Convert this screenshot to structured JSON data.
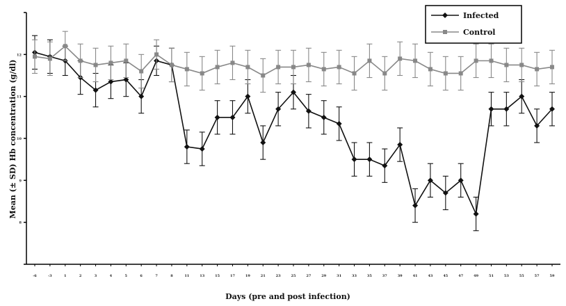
{
  "chart_data": {
    "type": "line",
    "title": "",
    "xlabel": "Days (pre and post infection)",
    "ylabel": "Mean (± SD) Hb concentration (g/dl)",
    "ylim": [
      7,
      13
    ],
    "yticks": [
      7,
      8,
      9,
      10,
      11,
      12,
      13
    ],
    "ytick_labels": [
      "",
      "8",
      "9",
      "10",
      "11",
      "12",
      ""
    ],
    "grid": false,
    "legend_position": "top-right",
    "categories": [
      "-6",
      "-3",
      "1",
      "2",
      "3",
      "4",
      "5",
      "6",
      "7",
      "8",
      "11",
      "13",
      "15",
      "17",
      "19",
      "21",
      "23",
      "25",
      "27",
      "29",
      "31",
      "33",
      "35",
      "37",
      "39",
      "41",
      "43",
      "45",
      "47",
      "49",
      "51",
      "53",
      "55",
      "57",
      "59"
    ],
    "series": [
      {
        "name": "Infected",
        "color": "#111111",
        "marker": "diamond",
        "values": [
          12.05,
          11.95,
          11.85,
          11.45,
          11.15,
          11.35,
          11.4,
          11.0,
          11.85,
          11.75,
          9.8,
          9.75,
          10.5,
          10.5,
          11.0,
          9.9,
          10.7,
          11.1,
          10.65,
          10.5,
          10.35,
          9.5,
          9.5,
          9.35,
          9.85,
          8.4,
          9.0,
          8.7,
          9.0,
          8.2,
          10.7,
          10.7,
          11.0,
          10.3,
          10.7
        ],
        "error": [
          0.4,
          0.4,
          0.35,
          0.4,
          0.4,
          0.4,
          0.4,
          0.4,
          0.35,
          0.4,
          0.4,
          0.4,
          0.4,
          0.4,
          0.4,
          0.4,
          0.4,
          0.4,
          0.4,
          0.4,
          0.4,
          0.4,
          0.4,
          0.4,
          0.4,
          0.4,
          0.4,
          0.4,
          0.4,
          0.4,
          0.4,
          0.4,
          0.4,
          0.4,
          0.4
        ]
      },
      {
        "name": "Control",
        "color": "#888888",
        "marker": "square",
        "values": [
          11.95,
          11.9,
          12.2,
          11.85,
          11.75,
          11.8,
          11.85,
          11.6,
          12.0,
          11.75,
          11.65,
          11.55,
          11.7,
          11.8,
          11.7,
          11.5,
          11.7,
          11.7,
          11.75,
          11.65,
          11.7,
          11.55,
          11.85,
          11.55,
          11.9,
          11.85,
          11.65,
          11.55,
          11.55,
          11.85,
          11.85,
          11.75,
          11.75,
          11.65,
          11.7
        ],
        "error": [
          0.4,
          0.4,
          0.35,
          0.4,
          0.4,
          0.4,
          0.4,
          0.4,
          0.35,
          0.4,
          0.4,
          0.4,
          0.4,
          0.4,
          0.4,
          0.4,
          0.4,
          0.4,
          0.4,
          0.4,
          0.4,
          0.4,
          0.4,
          0.4,
          0.4,
          0.4,
          0.4,
          0.4,
          0.4,
          0.4,
          0.4,
          0.4,
          0.4,
          0.4,
          0.4
        ]
      }
    ]
  }
}
